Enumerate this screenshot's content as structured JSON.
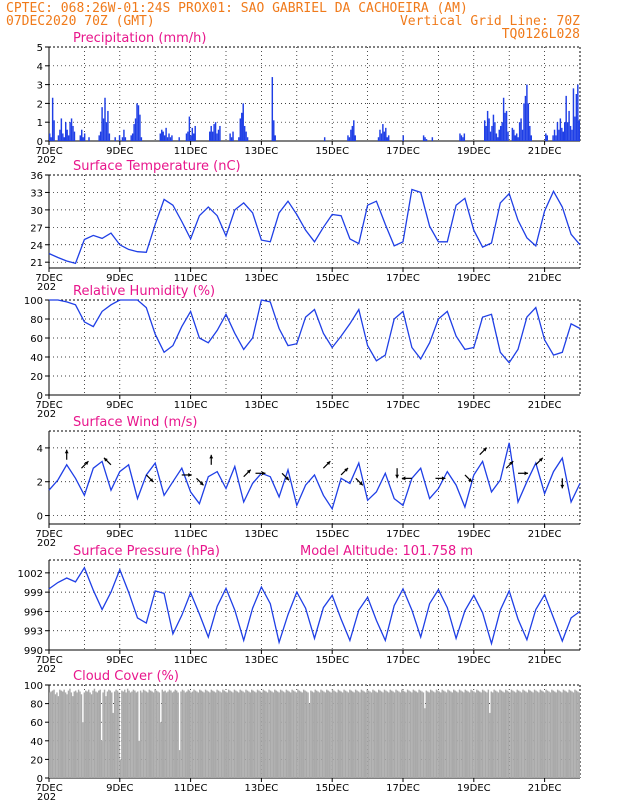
{
  "header": {
    "line1": "CPTEC:   068:26W-01:24S   PROX01: SAO GABRIEL DA CACHOEIRA (AM)",
    "line2_left": "07DEC2020 70Z (GMT)",
    "line2_right": "Vertical Grid Line: 70Z",
    "line3_right": "TQ0126L028"
  },
  "x_ticks": [
    "7DEC",
    "9DEC",
    "11DEC",
    "13DEC",
    "15DEC",
    "17DEC",
    "19DEC",
    "21DEC"
  ],
  "x_year_stub": "202",
  "colors": {
    "header": "#f07a1a",
    "title": "#e8168c",
    "series": "#1f3fe6",
    "cloud": "#a9a9a9",
    "wind_arrow": "#000000"
  },
  "chart_data": [
    {
      "type": "bar",
      "title": "Precipitation (mm/h)",
      "ylim": [
        0,
        5
      ],
      "yticks": [
        0,
        1,
        2,
        3,
        4,
        5
      ],
      "x_range_hours": [
        0,
        360
      ],
      "values": [
        0.4,
        0.2,
        2.3,
        1.1,
        0,
        0,
        0.3,
        0.6,
        1.2,
        0.4,
        0.2,
        1.0,
        0.6,
        0.3,
        1.0,
        1.2,
        0.8,
        0.5,
        0,
        0,
        0,
        0.3,
        0.6,
        0.2,
        0.4,
        0,
        0,
        0.2,
        0,
        0,
        0,
        0,
        0,
        0,
        0.3,
        0.5,
        1.8,
        1.2,
        2.3,
        1.0,
        1.6,
        0.4,
        0,
        0,
        0,
        0.2,
        0,
        0,
        0.3,
        0,
        0.2,
        0.6,
        0.2,
        0,
        0,
        0,
        0.3,
        0.4,
        0.9,
        1.2,
        2.0,
        1.9,
        1.4,
        0.2,
        0,
        0,
        0,
        0,
        0,
        0,
        0,
        0,
        0,
        0,
        0,
        0,
        0.4,
        0.6,
        0.5,
        0.3,
        0.7,
        0.2,
        0.4,
        0.2,
        0.3,
        0,
        0,
        0,
        0,
        0.2,
        0,
        0,
        0,
        0,
        0.4,
        0.5,
        1.3,
        0.3,
        0.7,
        0.4,
        0.8,
        0,
        0,
        0,
        0,
        0,
        0,
        0,
        0,
        0,
        0.5,
        0.8,
        0.5,
        0.9,
        1.0,
        0.4,
        0.6,
        0.8,
        0,
        0,
        0,
        0,
        0,
        0,
        0.4,
        0.2,
        0.5,
        0,
        0,
        0,
        0.2,
        1.2,
        1.5,
        2.0,
        0.8,
        0.5,
        0.2,
        0,
        0,
        0,
        0,
        0,
        0,
        0,
        0,
        0,
        0,
        0,
        0,
        0,
        0,
        0,
        0,
        3.4,
        1.1,
        0.3,
        0,
        0,
        0,
        0,
        0,
        0,
        0,
        0,
        0,
        0,
        0,
        0,
        0,
        0,
        0,
        0,
        0,
        0,
        0,
        0,
        0,
        0,
        0,
        0,
        0,
        0,
        0,
        0,
        0,
        0,
        0,
        0,
        0,
        0.2,
        0,
        0,
        0,
        0,
        0,
        0,
        0,
        0,
        0,
        0,
        0,
        0,
        0,
        0,
        0,
        0.3,
        0.2,
        0.6,
        0.8,
        1.1,
        0.3,
        0,
        0,
        0,
        0,
        0,
        0,
        0,
        0,
        0,
        0,
        0,
        0,
        0,
        0,
        0,
        0.2,
        0.6,
        0.4,
        0.9,
        0.5,
        0.7,
        0.2,
        0.3,
        0,
        0,
        0,
        0,
        0,
        0,
        0,
        0,
        0,
        0.3,
        0,
        0,
        0,
        0,
        0,
        0,
        0,
        0,
        0,
        0,
        0,
        0,
        0,
        0.3,
        0.2,
        0.1,
        0,
        0,
        0,
        0.2,
        0,
        0,
        0,
        0,
        0,
        0,
        0,
        0,
        0,
        0,
        0,
        0,
        0,
        0,
        0,
        0,
        0,
        0,
        0.4,
        0.3,
        0.2,
        0.4,
        0,
        0,
        0,
        0,
        0,
        0,
        0,
        0,
        0,
        0,
        0,
        0,
        0,
        1.1,
        0.8,
        1.6,
        1.2,
        0.5,
        0.8,
        1.4,
        1.0,
        0.4,
        0.2,
        0.6,
        0.8,
        1.0,
        2.3,
        1.5,
        1.6,
        0.5,
        0,
        0,
        0.7,
        0.6,
        0.3,
        0.4,
        0.2,
        1.0,
        1.2,
        0.6,
        2.0,
        2.4,
        3.0,
        2.0,
        0.8,
        0.3,
        0,
        0,
        0,
        0,
        0,
        0,
        0,
        0,
        0,
        0.4,
        0.3,
        0,
        0,
        0,
        0.3,
        0.6,
        0.3,
        1.0,
        0.6,
        1.2,
        0.7,
        0.5,
        1.0,
        2.4,
        1.0,
        1.6,
        0.8,
        0.6,
        2.8,
        1.3,
        2.5,
        3.0,
        1.1
      ]
    },
    {
      "type": "line",
      "title": "Surface Temperature (nC)",
      "ylim": [
        20,
        36
      ],
      "yticks": [
        21,
        24,
        27,
        30,
        33,
        36
      ],
      "x": [
        0,
        6,
        12,
        18,
        24,
        30,
        36,
        42,
        48,
        54,
        60,
        66,
        72,
        78,
        84,
        90,
        96,
        102,
        108,
        114,
        120,
        126,
        132,
        138,
        144,
        150,
        156,
        162,
        168,
        174,
        180,
        186,
        192,
        198,
        204,
        210,
        216,
        222,
        228,
        234,
        240,
        246,
        252,
        258,
        264,
        270,
        276,
        282,
        288,
        294,
        300,
        306,
        312,
        318,
        324,
        330,
        336,
        342,
        348,
        354,
        360
      ],
      "y": [
        22.5,
        21.8,
        21.2,
        20.8,
        24.9,
        25.6,
        25.1,
        26.0,
        24.0,
        23.2,
        22.8,
        22.7,
        27.5,
        31.8,
        30.8,
        28.0,
        25.0,
        29.0,
        30.5,
        29.0,
        25.5,
        30.0,
        31.2,
        29.5,
        24.8,
        24.5,
        29.5,
        31.5,
        29.2,
        26.5,
        24.5,
        27.0,
        29.2,
        29.0,
        25.0,
        24.2,
        30.8,
        31.5,
        27.5,
        23.8,
        24.5,
        33.5,
        33.0,
        27.2,
        24.5,
        24.5,
        30.8,
        32.0,
        26.5,
        23.6,
        24.3,
        31.2,
        32.8,
        28.2,
        25.2,
        23.8,
        29.8,
        33.2,
        30.5,
        25.8,
        24.0
      ]
    },
    {
      "type": "line",
      "title": "Relative Humidity (%)",
      "ylim": [
        0,
        100
      ],
      "yticks": [
        0,
        20,
        40,
        60,
        80,
        100
      ],
      "x": [
        0,
        6,
        12,
        18,
        24,
        30,
        36,
        42,
        48,
        54,
        60,
        66,
        72,
        78,
        84,
        90,
        96,
        102,
        108,
        114,
        120,
        126,
        132,
        138,
        144,
        150,
        156,
        162,
        168,
        174,
        180,
        186,
        192,
        198,
        204,
        210,
        216,
        222,
        228,
        234,
        240,
        246,
        252,
        258,
        264,
        270,
        276,
        282,
        288,
        294,
        300,
        306,
        312,
        318,
        324,
        330,
        336,
        342,
        348,
        354,
        360
      ],
      "y": [
        100,
        100,
        98,
        95,
        77,
        72,
        88,
        95,
        100,
        100,
        100,
        92,
        64,
        45,
        52,
        72,
        88,
        60,
        55,
        68,
        85,
        65,
        48,
        60,
        100,
        98,
        70,
        52,
        54,
        82,
        90,
        65,
        50,
        62,
        75,
        90,
        52,
        36,
        42,
        80,
        88,
        50,
        38,
        55,
        80,
        88,
        62,
        48,
        50,
        82,
        85,
        45,
        34,
        48,
        82,
        92,
        58,
        42,
        45,
        75,
        70
      ]
    },
    {
      "type": "line",
      "title": "Surface Wind (m/s)",
      "ylim": [
        -0.5,
        5
      ],
      "yticks": [
        0,
        2,
        4
      ],
      "x": [
        0,
        6,
        12,
        18,
        24,
        30,
        36,
        42,
        48,
        54,
        60,
        66,
        72,
        78,
        84,
        90,
        96,
        102,
        108,
        114,
        120,
        126,
        132,
        138,
        144,
        150,
        156,
        162,
        168,
        174,
        180,
        186,
        192,
        198,
        204,
        210,
        216,
        222,
        228,
        234,
        240,
        246,
        252,
        258,
        264,
        270,
        276,
        282,
        288,
        294,
        300,
        306,
        312,
        318,
        324,
        330,
        336,
        342,
        348,
        354,
        360
      ],
      "y": [
        1.5,
        2.1,
        3.0,
        2.2,
        1.2,
        2.8,
        3.2,
        1.5,
        2.6,
        3.0,
        1.0,
        2.4,
        3.1,
        1.2,
        2.0,
        2.8,
        1.4,
        0.7,
        2.3,
        2.6,
        1.6,
        2.9,
        0.8,
        1.9,
        2.5,
        2.3,
        1.1,
        2.7,
        0.6,
        1.8,
        2.4,
        1.2,
        0.4,
        2.2,
        1.9,
        3.1,
        0.9,
        1.4,
        2.5,
        1.0,
        0.6,
        2.2,
        2.8,
        1.0,
        1.6,
        2.6,
        1.8,
        0.5,
        2.4,
        3.2,
        1.4,
        2.1,
        4.3,
        0.8,
        2.0,
        3.1,
        1.3,
        2.6,
        3.4,
        0.8,
        1.9
      ],
      "arrows": [
        {
          "x": 12,
          "speed": 3.3,
          "dir": "N"
        },
        {
          "x": 22,
          "speed": 2.8,
          "dir": "NE"
        },
        {
          "x": 42,
          "speed": 3.0,
          "dir": "NW"
        },
        {
          "x": 66,
          "speed": 2.4,
          "dir": "SE"
        },
        {
          "x": 90,
          "speed": 2.4,
          "dir": "E"
        },
        {
          "x": 100,
          "speed": 2.2,
          "dir": "SE"
        },
        {
          "x": 110,
          "speed": 3.0,
          "dir": "N"
        },
        {
          "x": 132,
          "speed": 2.3,
          "dir": "NE"
        },
        {
          "x": 140,
          "speed": 2.5,
          "dir": "E"
        },
        {
          "x": 158,
          "speed": 2.5,
          "dir": "SE"
        },
        {
          "x": 186,
          "speed": 2.8,
          "dir": "NE"
        },
        {
          "x": 198,
          "speed": 2.4,
          "dir": "NE"
        },
        {
          "x": 208,
          "speed": 2.2,
          "dir": "SE"
        },
        {
          "x": 236,
          "speed": 2.8,
          "dir": "S"
        },
        {
          "x": 246,
          "speed": 2.2,
          "dir": "W"
        },
        {
          "x": 262,
          "speed": 2.2,
          "dir": "E"
        },
        {
          "x": 282,
          "speed": 2.4,
          "dir": "SE"
        },
        {
          "x": 292,
          "speed": 3.6,
          "dir": "NE"
        },
        {
          "x": 310,
          "speed": 2.8,
          "dir": "NE"
        },
        {
          "x": 318,
          "speed": 2.5,
          "dir": "E"
        },
        {
          "x": 330,
          "speed": 3.0,
          "dir": "NE"
        },
        {
          "x": 348,
          "speed": 2.2,
          "dir": "S"
        }
      ]
    },
    {
      "type": "line",
      "title": "Surface Pressure (hPa)",
      "annotation": "Model Altitude: 101.758 m",
      "ylim": [
        990,
        1004
      ],
      "yticks": [
        990,
        993,
        996,
        999,
        1002
      ],
      "x": [
        0,
        6,
        12,
        18,
        24,
        30,
        36,
        42,
        48,
        54,
        60,
        66,
        72,
        78,
        84,
        90,
        96,
        102,
        108,
        114,
        120,
        126,
        132,
        138,
        144,
        150,
        156,
        162,
        168,
        174,
        180,
        186,
        192,
        198,
        204,
        210,
        216,
        222,
        228,
        234,
        240,
        246,
        252,
        258,
        264,
        270,
        276,
        282,
        288,
        294,
        300,
        306,
        312,
        318,
        324,
        330,
        336,
        342,
        348,
        354,
        360
      ],
      "y": [
        999.5,
        1000.5,
        1001.2,
        1000.6,
        1002.8,
        999.3,
        996.3,
        999.0,
        1002.5,
        999.0,
        995.0,
        994.2,
        999.2,
        998.8,
        992.5,
        995.4,
        998.9,
        995.6,
        992.0,
        996.8,
        999.6,
        996.2,
        991.5,
        996.5,
        999.8,
        997.2,
        991.2,
        995.5,
        999.0,
        996.5,
        991.8,
        996.6,
        998.5,
        994.8,
        991.5,
        996.2,
        998.2,
        994.6,
        991.5,
        996.9,
        999.5,
        996.2,
        992.0,
        997.2,
        999.4,
        996.6,
        991.8,
        996.1,
        998.5,
        995.8,
        991.0,
        996.2,
        999.2,
        994.8,
        991.6,
        996.3,
        998.6,
        995.0,
        991.4,
        995.0,
        996.0
      ]
    },
    {
      "type": "bar",
      "title": "Cloud Cover (%)",
      "ylim": [
        0,
        100
      ],
      "yticks": [
        0,
        20,
        40,
        60,
        80,
        100
      ],
      "x_range_hours": [
        0,
        360
      ],
      "values": [
        92,
        93,
        94,
        95,
        90,
        92,
        88,
        95,
        94,
        93,
        95,
        92,
        90,
        94,
        96,
        92,
        88,
        93,
        94,
        92,
        95,
        93,
        90,
        60,
        92,
        94,
        93,
        95,
        92,
        90,
        94,
        96,
        93,
        92,
        94,
        95,
        40,
        92,
        95,
        88,
        93,
        95,
        94,
        92,
        70,
        93,
        95,
        94,
        92,
        20,
        94,
        93,
        95,
        92,
        96,
        94,
        92,
        93,
        95,
        94,
        92,
        93,
        40,
        94,
        92,
        95,
        94,
        93,
        92,
        95,
        94,
        93,
        92,
        95,
        94,
        93,
        92,
        60,
        95,
        93,
        94,
        92,
        93,
        95,
        94,
        92,
        93,
        95,
        94,
        92,
        30,
        93,
        95,
        94,
        92,
        93,
        95,
        94,
        92,
        93,
        95,
        94,
        93,
        92,
        95,
        94,
        93,
        92,
        95,
        94,
        93,
        92,
        95,
        94,
        93,
        92,
        95,
        94,
        93,
        92,
        95,
        94,
        93,
        92,
        95,
        94,
        93,
        92,
        95,
        94,
        93,
        92,
        95,
        94,
        93,
        92,
        95,
        94,
        93,
        92,
        95,
        94,
        93,
        92,
        95,
        94,
        93,
        92,
        95,
        94,
        93,
        92,
        95,
        94,
        93,
        92,
        95,
        94,
        93,
        92,
        95,
        94,
        93,
        92,
        95,
        94,
        93,
        92,
        95,
        94,
        93,
        92,
        95,
        94,
        93,
        92,
        95,
        94,
        93,
        92,
        80,
        94,
        93,
        92,
        95,
        94,
        93,
        92,
        95,
        94,
        93,
        92,
        95,
        94,
        93,
        92,
        95,
        94,
        93,
        92,
        95,
        94,
        93,
        92,
        95,
        94,
        93,
        92,
        95,
        94,
        93,
        92,
        95,
        94,
        93,
        92,
        95,
        94,
        93,
        92,
        95,
        94,
        93,
        92,
        95,
        94,
        93,
        92,
        95,
        94,
        93,
        92,
        95,
        94,
        93,
        92,
        95,
        94,
        93,
        92,
        95,
        94,
        93,
        92,
        95,
        94,
        93,
        92,
        95,
        94,
        93,
        92,
        95,
        94,
        93,
        92,
        95,
        94,
        93,
        92,
        75,
        94,
        93,
        92,
        95,
        94,
        93,
        92,
        95,
        94,
        93,
        92,
        95,
        94,
        93,
        92,
        95,
        94,
        93,
        92,
        95,
        94,
        93,
        92,
        95,
        94,
        93,
        92,
        95,
        94,
        93,
        92,
        95,
        94,
        93,
        92,
        95,
        94,
        93,
        92,
        95,
        94,
        93,
        92,
        95,
        70,
        93,
        92,
        95,
        94,
        93,
        92,
        95,
        94,
        93,
        92,
        95,
        94,
        93,
        92,
        95,
        94,
        93,
        92,
        95,
        94,
        93,
        92,
        95,
        94,
        93,
        92,
        95,
        94,
        93,
        92,
        95,
        94,
        93,
        92,
        95,
        94,
        93,
        92,
        95,
        94,
        93,
        92,
        95,
        94,
        93,
        92,
        95,
        94,
        93,
        92,
        95,
        94,
        93,
        92,
        95,
        94,
        93,
        92,
        95,
        94,
        93,
        92
      ]
    }
  ]
}
